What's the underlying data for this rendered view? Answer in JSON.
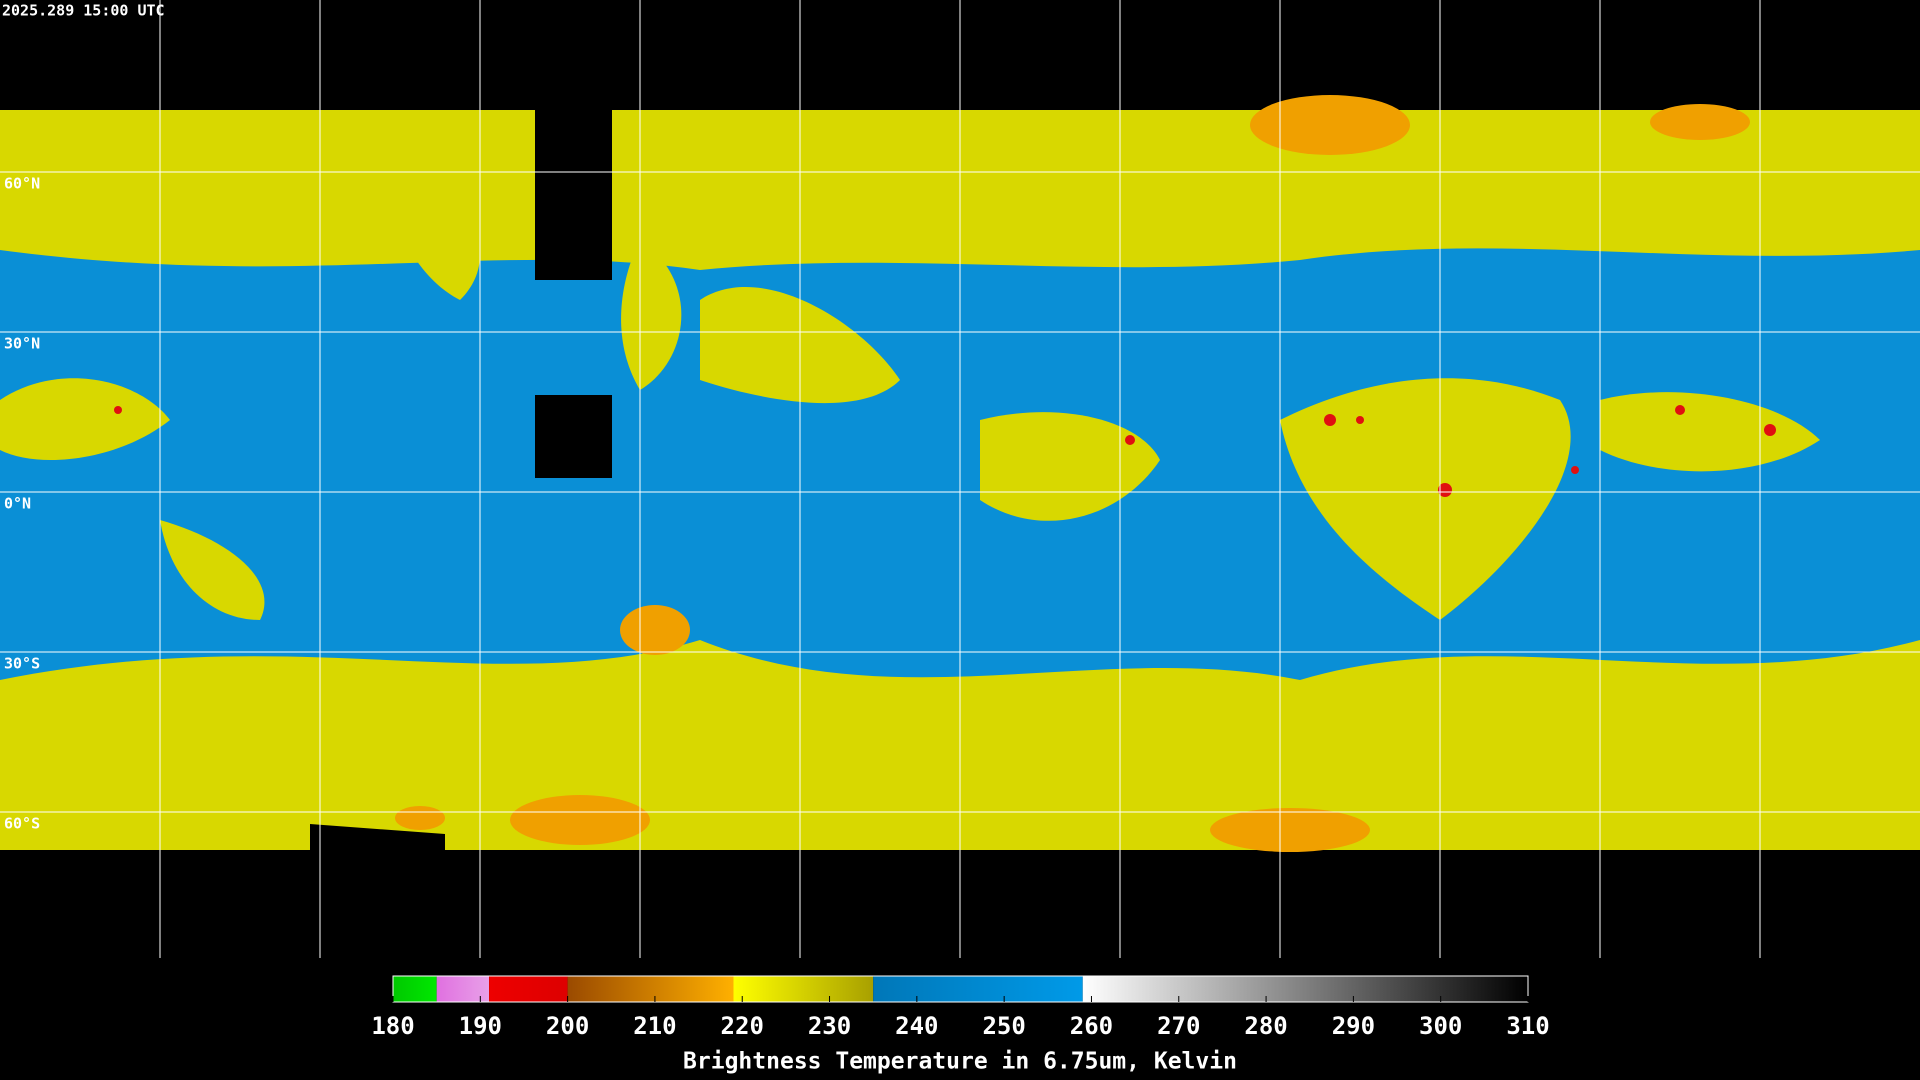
{
  "timestamp": "2025.289 15:00 UTC",
  "latitudes": [
    {
      "value": 60,
      "label": "60°N"
    },
    {
      "value": 30,
      "label": "30°N"
    },
    {
      "value": 0,
      "label": "0°N"
    },
    {
      "value": -30,
      "label": "30°S"
    },
    {
      "value": -60,
      "label": "60°S"
    }
  ],
  "colorbar": {
    "title": "Brightness Temperature in 6.75um, Kelvin",
    "lim": [
      180,
      310
    ],
    "ticks": [
      180,
      190,
      200,
      210,
      220,
      230,
      240,
      250,
      260,
      270,
      280,
      290,
      300,
      310
    ],
    "segments": [
      {
        "from": 180,
        "to": 185,
        "colors": [
          "#00c800",
          "#00e800"
        ]
      },
      {
        "from": 185,
        "to": 191,
        "colors": [
          "#e070e0",
          "#e8a0e8"
        ]
      },
      {
        "from": 191,
        "to": 200,
        "colors": [
          "#ee0000",
          "#dd0000"
        ]
      },
      {
        "from": 200,
        "to": 219,
        "colors": [
          "#9a4a00",
          "#ffb000"
        ]
      },
      {
        "from": 219,
        "to": 235,
        "colors": [
          "#ffff00",
          "#a8a000"
        ]
      },
      {
        "from": 235,
        "to": 259,
        "colors": [
          "#0077b8",
          "#009ae8"
        ]
      },
      {
        "from": 259,
        "to": 310,
        "colors": [
          "#ffffff",
          "#000000"
        ]
      }
    ]
  }
}
